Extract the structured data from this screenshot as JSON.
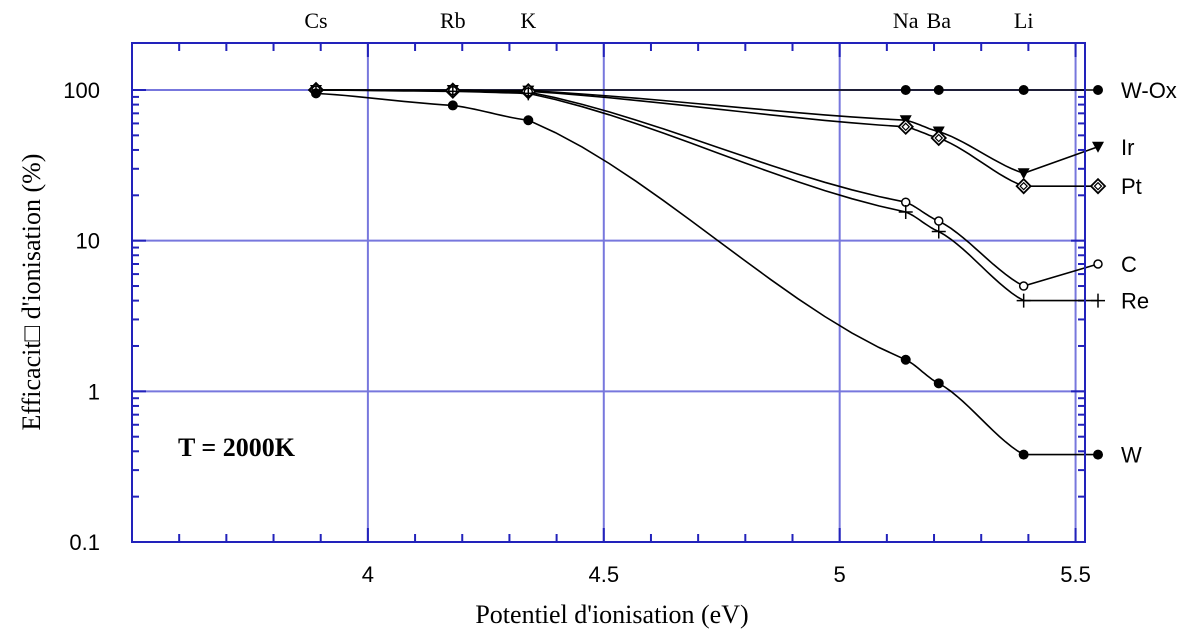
{
  "chart_data": {
    "type": "line",
    "title": "",
    "xlabel": "Potentiel d'ionisation (eV)",
    "ylabel": "Efficacit□ d'ionisation (%)",
    "annotation": "T = 2000K",
    "xlim": [
      3.5,
      5.52
    ],
    "ylim": [
      0.1,
      150
    ],
    "yscale": "log",
    "x_ticks": [
      4,
      4.5,
      5,
      5.5
    ],
    "x_tick_labels": [
      "4",
      "4.5",
      "5",
      "5.5"
    ],
    "y_ticks": [
      0.1,
      1,
      10,
      100
    ],
    "y_tick_labels": [
      "0.1",
      "1",
      "10",
      "100"
    ],
    "grid": true,
    "grid_color": "#7777dd",
    "axis_color": "#2222bb",
    "elements": [
      {
        "label": "Cs",
        "x": 3.89
      },
      {
        "label": "Rb",
        "x": 4.18
      },
      {
        "label": "K",
        "x": 4.34
      },
      {
        "label": "Na",
        "x": 5.14
      },
      {
        "label": "Ba",
        "x": 5.21
      },
      {
        "label": "Li",
        "x": 5.39
      }
    ],
    "series": [
      {
        "name": "W-Ox",
        "marker": "filled-circle",
        "x": [
          3.89,
          4.18,
          4.34,
          5.14,
          5.21,
          5.39
        ],
        "y": [
          100,
          100,
          100,
          100,
          100,
          100
        ],
        "legend_y": 100
      },
      {
        "name": "Ir",
        "marker": "filled-triangle-down",
        "x": [
          3.89,
          4.18,
          4.34,
          5.14,
          5.21,
          5.39
        ],
        "y": [
          100,
          100,
          99,
          63,
          53,
          28
        ],
        "legend_y": 42
      },
      {
        "name": "Pt",
        "marker": "diamond",
        "x": [
          3.89,
          4.18,
          4.34,
          5.14,
          5.21,
          5.39
        ],
        "y": [
          100,
          99,
          98,
          57,
          48,
          23
        ],
        "legend_y": 23
      },
      {
        "name": "C",
        "marker": "open-circle",
        "x": [
          3.89,
          4.18,
          4.34,
          5.14,
          5.21,
          5.39
        ],
        "y": [
          100,
          99,
          97,
          18,
          13.5,
          5
        ],
        "legend_y": 7
      },
      {
        "name": "Re",
        "marker": "plus",
        "x": [
          3.89,
          4.18,
          4.34,
          5.14,
          5.21,
          5.39
        ],
        "y": [
          100,
          98,
          95,
          15.5,
          11.5,
          4
        ],
        "legend_y": 4
      },
      {
        "name": "W",
        "marker": "filled-circle",
        "x": [
          3.89,
          4.18,
          4.34,
          5.14,
          5.21,
          5.39
        ],
        "y": [
          95,
          79,
          63,
          1.62,
          1.13,
          0.38
        ],
        "legend_y": 0.38
      }
    ]
  }
}
